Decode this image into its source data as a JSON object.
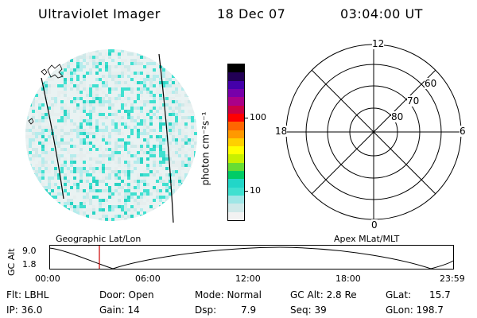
{
  "header": {
    "title": "Ultraviolet Imager",
    "date": "18 Dec 07",
    "time": "03:04:00 UT"
  },
  "colorbar": {
    "unit_label": "photon cm⁻²s⁻¹",
    "ticks": [
      "100",
      "10"
    ],
    "colors": [
      "#f2f2f2",
      "#cfe9e9",
      "#9fe6e6",
      "#40e0d0",
      "#22d6c8",
      "#00cc66",
      "#66dd33",
      "#c8f000",
      "#ffff00",
      "#ffd000",
      "#ff9900",
      "#ff6600",
      "#ff0000",
      "#cc0044",
      "#aa0088",
      "#7700aa",
      "#4400aa",
      "#220055",
      "#000000"
    ]
  },
  "polar": {
    "mlt_labels": {
      "top": "12",
      "left": "18",
      "right": "6",
      "bottom": "0"
    },
    "lat_labels": [
      "60",
      "70",
      "80"
    ]
  },
  "imager": {
    "left_label": "Geographic Lat/Lon",
    "right_label": "Apex MLat/MLT",
    "accent": "#40e0d0"
  },
  "altplot": {
    "ylabel": "GC Alt",
    "y_ticks": [
      "9.0",
      "1.8"
    ],
    "x_ticks": [
      "00:00",
      "06:00",
      "12:00",
      "18:00",
      "23:59"
    ],
    "marker_color": "#cc0000"
  },
  "status": {
    "filter": "Flt: LBHL",
    "ip": "IP: 36.0",
    "door": "Door: Open",
    "gain": "Gain: 14",
    "mode": "Mode: Normal",
    "dsp_label": "Dsp:",
    "dsp_value": "7.9",
    "gc_alt": "GC Alt: 2.8 Re",
    "seq": "Seq: 39",
    "glat_label": "GLat:",
    "glat_value": "15.7",
    "glon": "GLon: 198.7"
  }
}
